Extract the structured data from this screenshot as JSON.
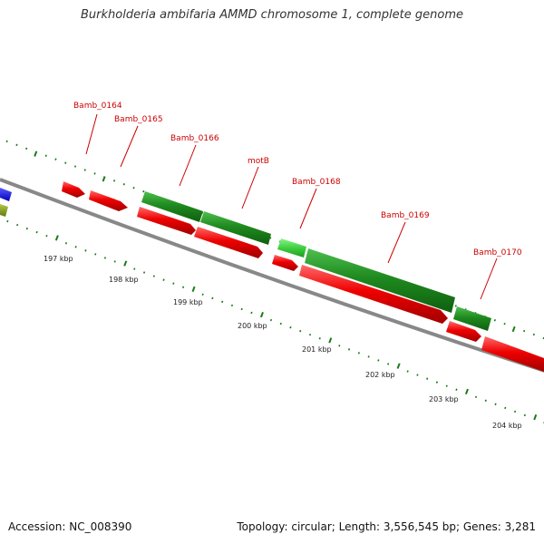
{
  "title": "Burkholderia ambifaria AMMD chromosome 1, complete genome",
  "footer": {
    "accession": "Accession: NC_008390",
    "summary": "Topology: circular; Length: 3,556,545 bp; Genes: 3,281"
  },
  "colors": {
    "forward_cds": "#1f8a1f",
    "forward_cds_light": "#3fcf3f",
    "reverse_cds": "#ee0000",
    "blue_feature": "#0000ee",
    "olive_feature": "#7f9a1f",
    "backbone": "#888888",
    "tick": "#1a7a1a",
    "label": "#cc0000"
  },
  "gene_labels": [
    "Bamb_0164",
    "Bamb_0165",
    "Bamb_0166",
    "motB",
    "Bamb_0168",
    "Bamb_0169",
    "Bamb_0170"
  ],
  "scale_labels": [
    "197 kbp",
    "198 kbp",
    "199 kbp",
    "200 kbp",
    "201 kbp",
    "202 kbp",
    "203 kbp",
    "204 kbp"
  ]
}
